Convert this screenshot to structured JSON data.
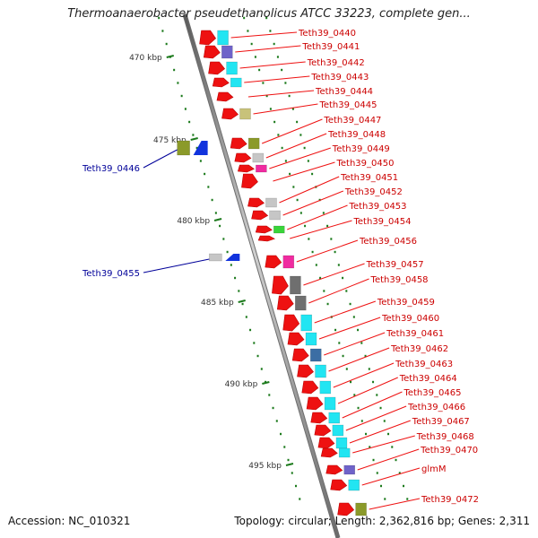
{
  "title": "Thermoanaerobacter pseudethanolicus ATCC 33223, complete gen...",
  "footer": {
    "accession": "Accession: NC_010321",
    "summary": "Topology: circular; Length: 2,362,816 bp; Genes: 2,311"
  },
  "colors": {
    "forward_cds": "#ee1111",
    "label_forward": "#cc0000",
    "label_reverse": "#000099",
    "reverse_cds": "#1133dd",
    "backbone": "#7f7f7f",
    "ticks": "#1c7a1c",
    "cyan": "#22e5f2",
    "purple": "#6f63c9",
    "olive": "#8b9a2a",
    "khaki": "#c8c27a",
    "gray": "#c6c6c6",
    "darkgray": "#6f6f6f",
    "magenta": "#f02ba0",
    "green": "#39d43a",
    "steelblue": "#3c6ea4"
  },
  "axis": {
    "unit": "kbp",
    "ticks": [
      {
        "label": "470 kbp",
        "kbp": 470
      },
      {
        "label": "475 kbp",
        "kbp": 475
      },
      {
        "label": "480 kbp",
        "kbp": 480
      },
      {
        "label": "485 kbp",
        "kbp": 485
      },
      {
        "label": "490 kbp",
        "kbp": 490
      },
      {
        "label": "495 kbp",
        "kbp": 495
      }
    ]
  },
  "forward_genes": [
    {
      "locus": "Teth39_0440",
      "cog": "cyan"
    },
    {
      "locus": "Teth39_0441",
      "cog": "purple"
    },
    {
      "locus": "Teth39_0442",
      "cog": "cyan"
    },
    {
      "locus": "Teth39_0443",
      "cog": "cyan"
    },
    {
      "locus": "Teth39_0444",
      "cog": "none"
    },
    {
      "locus": "Teth39_0445",
      "cog": "khaki"
    },
    {
      "locus": "Teth39_0447",
      "cog": "olive"
    },
    {
      "locus": "Teth39_0448",
      "cog": "gray"
    },
    {
      "locus": "Teth39_0449",
      "cog": "magenta"
    },
    {
      "locus": "Teth39_0450",
      "cog": "none"
    },
    {
      "locus": "Teth39_0451",
      "cog": "gray"
    },
    {
      "locus": "Teth39_0452",
      "cog": "gray"
    },
    {
      "locus": "Teth39_0453",
      "cog": "green"
    },
    {
      "locus": "Teth39_0454",
      "cog": "none"
    },
    {
      "locus": "Teth39_0456",
      "cog": "magenta"
    },
    {
      "locus": "Teth39_0457",
      "cog": "darkgray"
    },
    {
      "locus": "Teth39_0458",
      "cog": "darkgray"
    },
    {
      "locus": "Teth39_0459",
      "cog": "cyan"
    },
    {
      "locus": "Teth39_0460",
      "cog": "cyan"
    },
    {
      "locus": "Teth39_0461",
      "cog": "steelblue"
    },
    {
      "locus": "Teth39_0462",
      "cog": "cyan"
    },
    {
      "locus": "Teth39_0463",
      "cog": "cyan"
    },
    {
      "locus": "Teth39_0464",
      "cog": "cyan"
    },
    {
      "locus": "Teth39_0465",
      "cog": "cyan"
    },
    {
      "locus": "Teth39_0466",
      "cog": "cyan"
    },
    {
      "locus": "Teth39_0467",
      "cog": "cyan"
    },
    {
      "locus": "Teth39_0468",
      "cog": "cyan"
    },
    {
      "locus": "Teth39_0470",
      "cog": "purple"
    },
    {
      "locus": "glmM",
      "cog": "cyan"
    },
    {
      "locus": "Teth39_0472",
      "cog": "olive"
    }
  ],
  "reverse_genes": [
    {
      "locus": "Teth39_0446",
      "cog": "olive"
    },
    {
      "locus": "Teth39_0455",
      "cog": "gray"
    }
  ]
}
